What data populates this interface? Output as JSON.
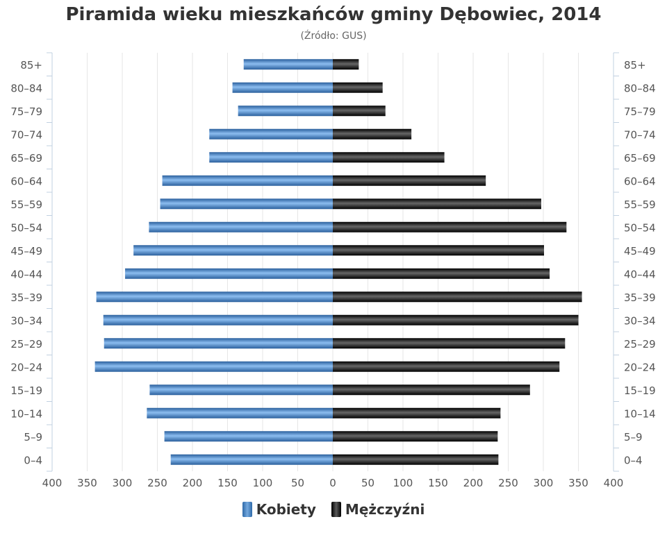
{
  "title": "Piramida wieku mieszkańców gminy Dębowiec, 2014",
  "subtitle": "(Źródło: GUS)",
  "chart_data": {
    "type": "bar",
    "orientation": "horizontal-pyramid",
    "categories": [
      "0–4",
      "5–9",
      "10–14",
      "15–19",
      "20–24",
      "25–29",
      "30–34",
      "35–39",
      "40–44",
      "45–49",
      "50–54",
      "55–59",
      "60–64",
      "65–69",
      "70–74",
      "75–79",
      "80–84",
      "85+"
    ],
    "series": [
      {
        "name": "Kobiety",
        "side": "left",
        "color": "#3d7dc4",
        "values": [
          231,
          240,
          265,
          261,
          339,
          326,
          327,
          337,
          296,
          284,
          262,
          246,
          243,
          176,
          176,
          135,
          143,
          127
        ]
      },
      {
        "name": "Mężczyźni",
        "side": "right",
        "color": "#111111",
        "values": [
          236,
          235,
          239,
          281,
          323,
          331,
          350,
          355,
          309,
          301,
          333,
          297,
          218,
          159,
          112,
          75,
          71,
          37
        ]
      }
    ],
    "xlim": [
      -400,
      400
    ],
    "x_ticks": [
      400,
      350,
      300,
      250,
      200,
      150,
      100,
      50,
      0,
      50,
      100,
      150,
      200,
      250,
      300,
      350,
      400
    ],
    "grid": true,
    "legend": "bottom"
  }
}
